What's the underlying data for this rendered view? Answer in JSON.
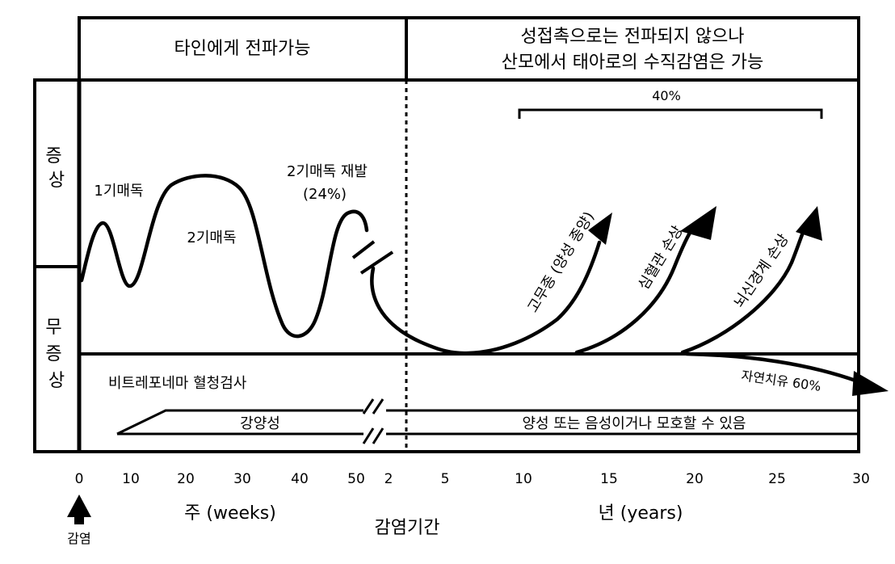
{
  "header": {
    "left_label": "타인에게 전파가능",
    "right_label_line1": "성접촉으로는 전파되지 않으나",
    "right_label_line2": "산모에서 태아로의 수직감염은 가능"
  },
  "side_labels": {
    "symptomatic": "증\n상",
    "asymptomatic": "무\n증\n상"
  },
  "stages": {
    "primary": "1기매독",
    "secondary": "2기매독",
    "secondary_relapse_line1": "2기매독 재발",
    "secondary_relapse_line2": "(24%)"
  },
  "late_outcomes": {
    "bracket_percent": "40%",
    "gumma": "고무종 (양성 종양)",
    "cardiovascular": "심혈관 손상",
    "neuro": "뇌신경계 손상",
    "spontaneous_cure": "자연치유 60%"
  },
  "serology": {
    "title": "비트레포네마 혈청검사",
    "strong_positive": "강양성",
    "later_result": "양성 또는 음성이거나 모호할 수 있음"
  },
  "axis": {
    "weeks_ticks": [
      "0",
      "10",
      "20",
      "30",
      "40",
      "50"
    ],
    "years_ticks": [
      "2",
      "5",
      "10",
      "15",
      "20",
      "25",
      "30"
    ],
    "weeks_label": "주 (weeks)",
    "years_label": "년 (years)",
    "title": "감염기간",
    "infection_marker": "감염"
  }
}
